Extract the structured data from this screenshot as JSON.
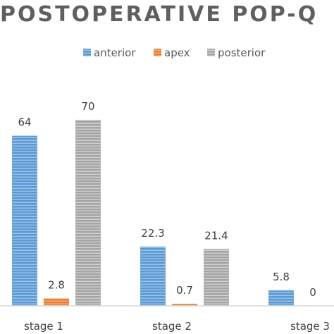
{
  "chart_data": {
    "type": "bar",
    "title": "POSTOPERATIVE POP-Q",
    "xlabel": "",
    "ylabel": "",
    "categories": [
      "stage 1",
      "stage 2",
      "stage 3"
    ],
    "series": [
      {
        "name": "anterior",
        "values": [
          64,
          22.3,
          5.8
        ],
        "color": "#5b9bd5"
      },
      {
        "name": "apex",
        "values": [
          2.8,
          0.7,
          0
        ],
        "color": "#ed7d31"
      },
      {
        "name": "posterior",
        "values": [
          70,
          21.4,
          null
        ],
        "color": "#a5a5a5"
      }
    ],
    "ylim": [
      0,
      70
    ],
    "grid": false,
    "legend_position": "top"
  }
}
